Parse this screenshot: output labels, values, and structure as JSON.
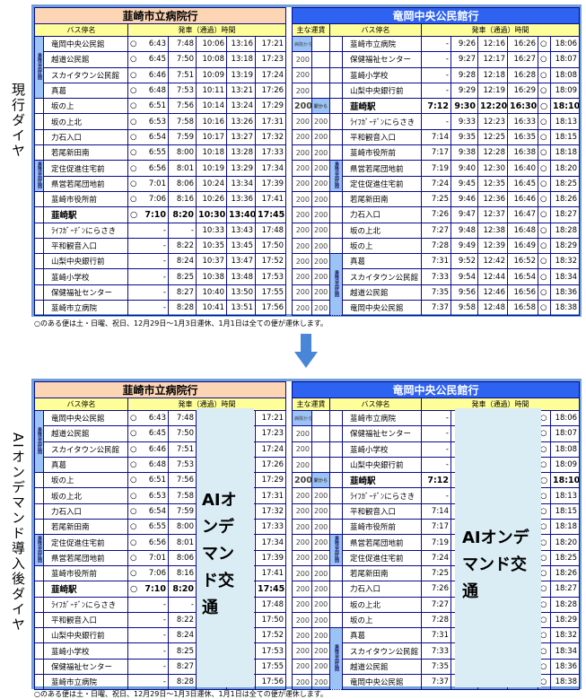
{
  "labels": {
    "current": "現行ダイヤ",
    "after": "AIオンデマンド導入後ダイヤ"
  },
  "note": "○のある便は土・日曜、祝日、12月29日～1月3日運休、1月1日は全ての便が運休します。",
  "ai_text": "AIオンデマンド交通",
  "strip_label": "乗降自由区間",
  "left": {
    "title": "韮崎市立病院行",
    "hdr_stop": "バス停名",
    "hdr_time": "発車（通過）時間",
    "rows": [
      {
        "name": "竜岡中央公民館",
        "circle": "○",
        "times": [
          "6:43",
          "7:48",
          "10:06",
          "13:16",
          "17:21"
        ]
      },
      {
        "name": "越道公民館",
        "circle": "○",
        "times": [
          "6:45",
          "7:50",
          "10:08",
          "13:18",
          "17:23"
        ]
      },
      {
        "name": "スカイタウン公民館",
        "circle": "○",
        "times": [
          "6:46",
          "7:51",
          "10:09",
          "13:19",
          "17:24"
        ]
      },
      {
        "name": "真葛",
        "circle": "○",
        "times": [
          "6:48",
          "7:53",
          "10:11",
          "13:21",
          "17:26"
        ]
      },
      {
        "name": "坂の上",
        "circle": "○",
        "times": [
          "6:51",
          "7:56",
          "10:14",
          "13:24",
          "17:29"
        ]
      },
      {
        "name": "坂の上北",
        "circle": "○",
        "times": [
          "6:53",
          "7:58",
          "10:16",
          "13:26",
          "17:31"
        ]
      },
      {
        "name": "力石入口",
        "circle": "○",
        "times": [
          "6:54",
          "7:59",
          "10:17",
          "13:27",
          "17:32"
        ]
      },
      {
        "name": "若尾新田南",
        "circle": "○",
        "times": [
          "6:55",
          "8:00",
          "10:18",
          "13:28",
          "17:33"
        ]
      },
      {
        "name": "定住促進住宅前",
        "circle": "○",
        "times": [
          "6:56",
          "8:01",
          "10:19",
          "13:29",
          "17:34"
        ]
      },
      {
        "name": "県営若尾団地前",
        "circle": "○",
        "times": [
          "7:01",
          "8:06",
          "10:24",
          "13:34",
          "17:39"
        ]
      },
      {
        "name": "韮崎市役所前",
        "circle": "○",
        "times": [
          "7:06",
          "8:16",
          "10:26",
          "13:36",
          "17:41"
        ]
      },
      {
        "name": "韮崎駅",
        "circle": "○",
        "times": [
          "7:10",
          "8:20",
          "10:30",
          "13:40",
          "17:45"
        ]
      },
      {
        "name": "ﾗｲﾌｶﾞｰﾃﾞﾝにらさき",
        "circle": "",
        "times": [
          "-",
          "-",
          "10:33",
          "13:43",
          "17:48"
        ]
      },
      {
        "name": "平和観音入口",
        "circle": "",
        "times": [
          "-",
          "8:22",
          "10:35",
          "13:45",
          "17:50"
        ]
      },
      {
        "name": "山梨中央銀行前",
        "circle": "",
        "times": [
          "-",
          "8:24",
          "10:37",
          "13:47",
          "17:52"
        ]
      },
      {
        "name": "韮崎小学校",
        "circle": "",
        "times": [
          "-",
          "8:25",
          "10:38",
          "13:48",
          "17:53"
        ]
      },
      {
        "name": "保健福祉センター",
        "circle": "",
        "times": [
          "-",
          "8:27",
          "10:40",
          "13:50",
          "17:55"
        ]
      },
      {
        "name": "韮崎市立病院",
        "circle": "",
        "times": [
          "-",
          "8:28",
          "10:41",
          "13:51",
          "17:56"
        ]
      }
    ]
  },
  "right": {
    "title": "竜岡中央公民館行",
    "hdr_fare": "主な運賃",
    "hdr_stop": "バス停名",
    "hdr_time": "発車（通過）時間",
    "rows": [
      {
        "f1": "病院から",
        "f2": "",
        "name": "韮崎市立病院",
        "times": [
          "-",
          "9:26",
          "12:16",
          "16:26"
        ],
        "circle": "○",
        "last": "18:06"
      },
      {
        "f1": "200",
        "f2": "",
        "name": "保健福祉センター",
        "times": [
          "-",
          "9:27",
          "12:17",
          "16:27"
        ],
        "circle": "○",
        "last": "18:07"
      },
      {
        "f1": "200",
        "f2": "",
        "name": "韮崎小学校",
        "times": [
          "-",
          "9:28",
          "12:18",
          "16:28"
        ],
        "circle": "○",
        "last": "18:08"
      },
      {
        "f1": "200",
        "f2": "",
        "name": "山梨中央銀行前",
        "times": [
          "-",
          "9:29",
          "12:19",
          "16:29"
        ],
        "circle": "○",
        "last": "18:09"
      },
      {
        "f1": "200",
        "f2": "駅から",
        "name": "韮崎駅",
        "times": [
          "7:12",
          "9:30",
          "12:20",
          "16:30"
        ],
        "circle": "○",
        "last": "18:10"
      },
      {
        "f1": "200",
        "f2": "200",
        "name": "ﾗｲﾌｶﾞｰﾃﾞﾝにらさき",
        "times": [
          "-",
          "9:33",
          "12:23",
          "16:33"
        ],
        "circle": "○",
        "last": "18:13"
      },
      {
        "f1": "200",
        "f2": "200",
        "name": "平和観音入口",
        "times": [
          "7:14",
          "9:35",
          "12:25",
          "16:35"
        ],
        "circle": "○",
        "last": "18:15"
      },
      {
        "f1": "200",
        "f2": "200",
        "name": "韮崎市役所前",
        "times": [
          "7:17",
          "9:38",
          "12:28",
          "16:38"
        ],
        "circle": "○",
        "last": "18:18"
      },
      {
        "f1": "200",
        "f2": "200",
        "name": "県営若尾団地前",
        "times": [
          "7:19",
          "9:40",
          "12:30",
          "16:40"
        ],
        "circle": "○",
        "last": "18:20"
      },
      {
        "f1": "200",
        "f2": "200",
        "name": "定住促進住宅前",
        "times": [
          "7:24",
          "9:45",
          "12:35",
          "16:45"
        ],
        "circle": "○",
        "last": "18:25"
      },
      {
        "f1": "200",
        "f2": "200",
        "name": "若尾新田南",
        "times": [
          "7:25",
          "9:46",
          "12:36",
          "16:46"
        ],
        "circle": "○",
        "last": "18:26"
      },
      {
        "f1": "200",
        "f2": "200",
        "name": "力石入口",
        "times": [
          "7:26",
          "9:47",
          "12:37",
          "16:47"
        ],
        "circle": "○",
        "last": "18:27"
      },
      {
        "f1": "200",
        "f2": "200",
        "name": "坂の上北",
        "times": [
          "7:27",
          "9:48",
          "12:38",
          "16:48"
        ],
        "circle": "○",
        "last": "18:28"
      },
      {
        "f1": "200",
        "f2": "200",
        "name": "坂の上",
        "times": [
          "7:28",
          "9:49",
          "12:39",
          "16:49"
        ],
        "circle": "○",
        "last": "18:29"
      },
      {
        "f1": "200",
        "f2": "200",
        "name": "真葛",
        "times": [
          "7:31",
          "9:52",
          "12:42",
          "16:52"
        ],
        "circle": "○",
        "last": "18:32"
      },
      {
        "f1": "200",
        "f2": "200",
        "name": "スカイタウン公民館",
        "times": [
          "7:33",
          "9:54",
          "12:44",
          "16:54"
        ],
        "circle": "○",
        "last": "18:34"
      },
      {
        "f1": "200",
        "f2": "200",
        "name": "越道公民館",
        "times": [
          "7:35",
          "9:56",
          "12:46",
          "16:56"
        ],
        "circle": "○",
        "last": "18:36"
      },
      {
        "f1": "200",
        "f2": "200",
        "name": "竜岡中央公民館",
        "times": [
          "7:37",
          "9:58",
          "12:48",
          "16:58"
        ],
        "circle": "○",
        "last": "18:38"
      }
    ]
  },
  "colors": {
    "frame": "#6f9fd8",
    "left_title_bg": "#fcd5b4",
    "right_title_bg": "#2e62f0",
    "header_bg": "#ffff99",
    "strip": "#9cc3f5",
    "ai_bg": "#daecf4",
    "arrow": "#4a86d8"
  }
}
